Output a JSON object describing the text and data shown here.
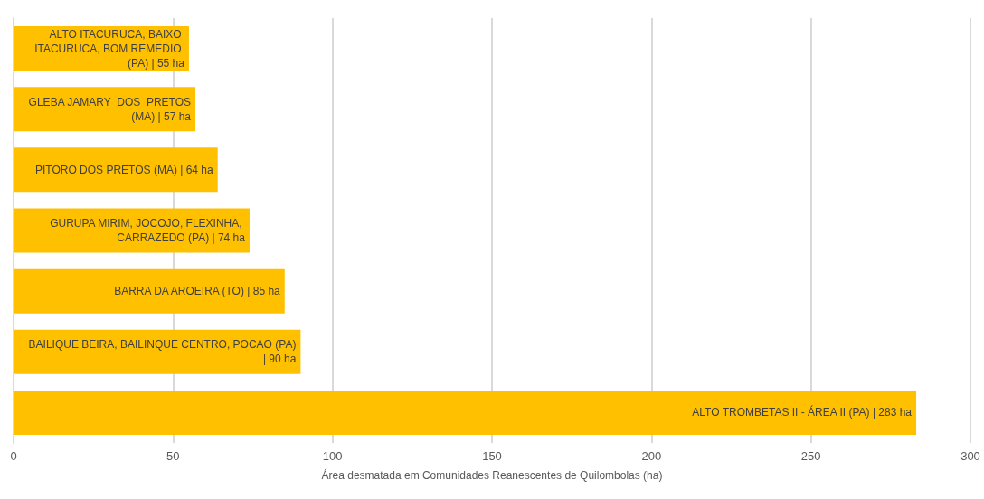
{
  "chart_data": {
    "type": "bar",
    "orientation": "horizontal",
    "xlabel": "Área desmatada em Comunidades Reanescentes de Quilombolas (ha)",
    "categories": [
      "ALTO ITACURUCA, BAIXO ITACURUCA, BOM REMEDIO (PA)",
      "GLEBA JAMARY  DOS  PRETOS (MA)",
      "PITORO DOS PRETOS (MA)",
      "GURUPA MIRIM, JOCOJO, FLEXINHA, CARRAZEDO (PA)",
      "BARRA DA AROEIRA (TO)",
      "BAILIQUE BEIRA, BAILINQUE CENTRO, POCAO (PA)",
      "ALTO TROMBETAS II - ÁREA II (PA)"
    ],
    "values": [
      55,
      57,
      64,
      74,
      85,
      90,
      283
    ],
    "value_labels": [
      "| 55 ha",
      "| 57 ha",
      "| 64 ha",
      "| 74 ha",
      "| 85 ha",
      "| 90 ha",
      "| 283 ha"
    ],
    "color": "#ffc000",
    "xlim": [
      0,
      300
    ],
    "xticks": [
      0,
      50,
      100,
      150,
      200,
      250,
      300
    ],
    "grid": "x",
    "tick_labels": "x"
  }
}
